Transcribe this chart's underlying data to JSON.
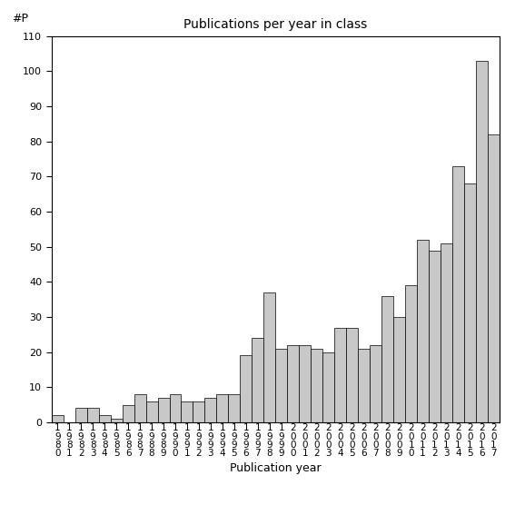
{
  "title": "Publications per year in class",
  "xlabel": "Publication year",
  "ylabel": "#P",
  "years": [
    "1980",
    "1981",
    "1982",
    "1983",
    "1984",
    "1985",
    "1986",
    "1987",
    "1988",
    "1989",
    "1990",
    "1991",
    "1992",
    "1993",
    "1994",
    "1995",
    "1996",
    "1997",
    "1998",
    "1999",
    "2000",
    "2001",
    "2002",
    "2003",
    "2004",
    "2005",
    "2006",
    "2007",
    "2008",
    "2009",
    "2010",
    "2011",
    "2012",
    "2013",
    "2014",
    "2015",
    "2016",
    "2017"
  ],
  "values": [
    2,
    0,
    4,
    4,
    2,
    1,
    5,
    8,
    6,
    7,
    8,
    6,
    6,
    7,
    8,
    8,
    19,
    24,
    37,
    21,
    22,
    22,
    21,
    20,
    27,
    27,
    21,
    22,
    36,
    30,
    39,
    52,
    49,
    51,
    73,
    68,
    103,
    82
  ],
  "ylim": [
    0,
    110
  ],
  "yticks": [
    0,
    10,
    20,
    30,
    40,
    50,
    60,
    70,
    80,
    90,
    100,
    110
  ],
  "bar_color": "#c8c8c8",
  "bar_edge_color": "#000000",
  "bar_edge_width": 0.5,
  "bg_color": "#ffffff",
  "figsize": [
    5.67,
    5.67
  ],
  "dpi": 100
}
